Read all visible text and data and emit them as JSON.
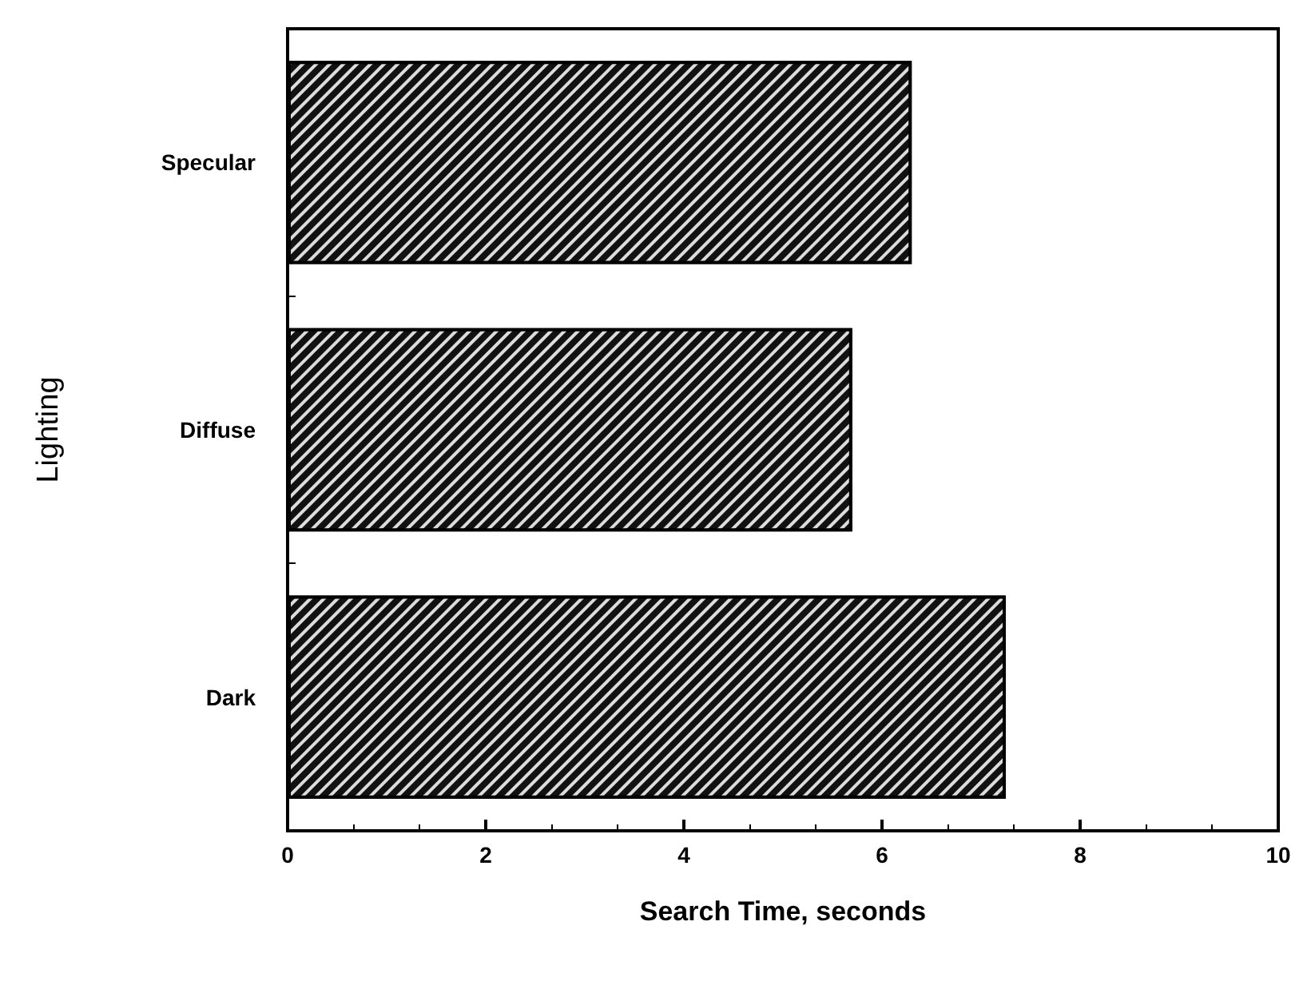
{
  "chart_data": {
    "type": "bar",
    "orientation": "horizontal",
    "categories": [
      "Specular",
      "Diffuse",
      "Dark"
    ],
    "values": [
      6.3,
      5.7,
      7.25
    ],
    "color": "#111111",
    "xlabel": "Search Time, seconds",
    "ylabel": "Lighting",
    "xlim": [
      0,
      10
    ],
    "xticks": [
      0,
      2,
      4,
      6,
      8,
      10
    ],
    "grid": false
  }
}
